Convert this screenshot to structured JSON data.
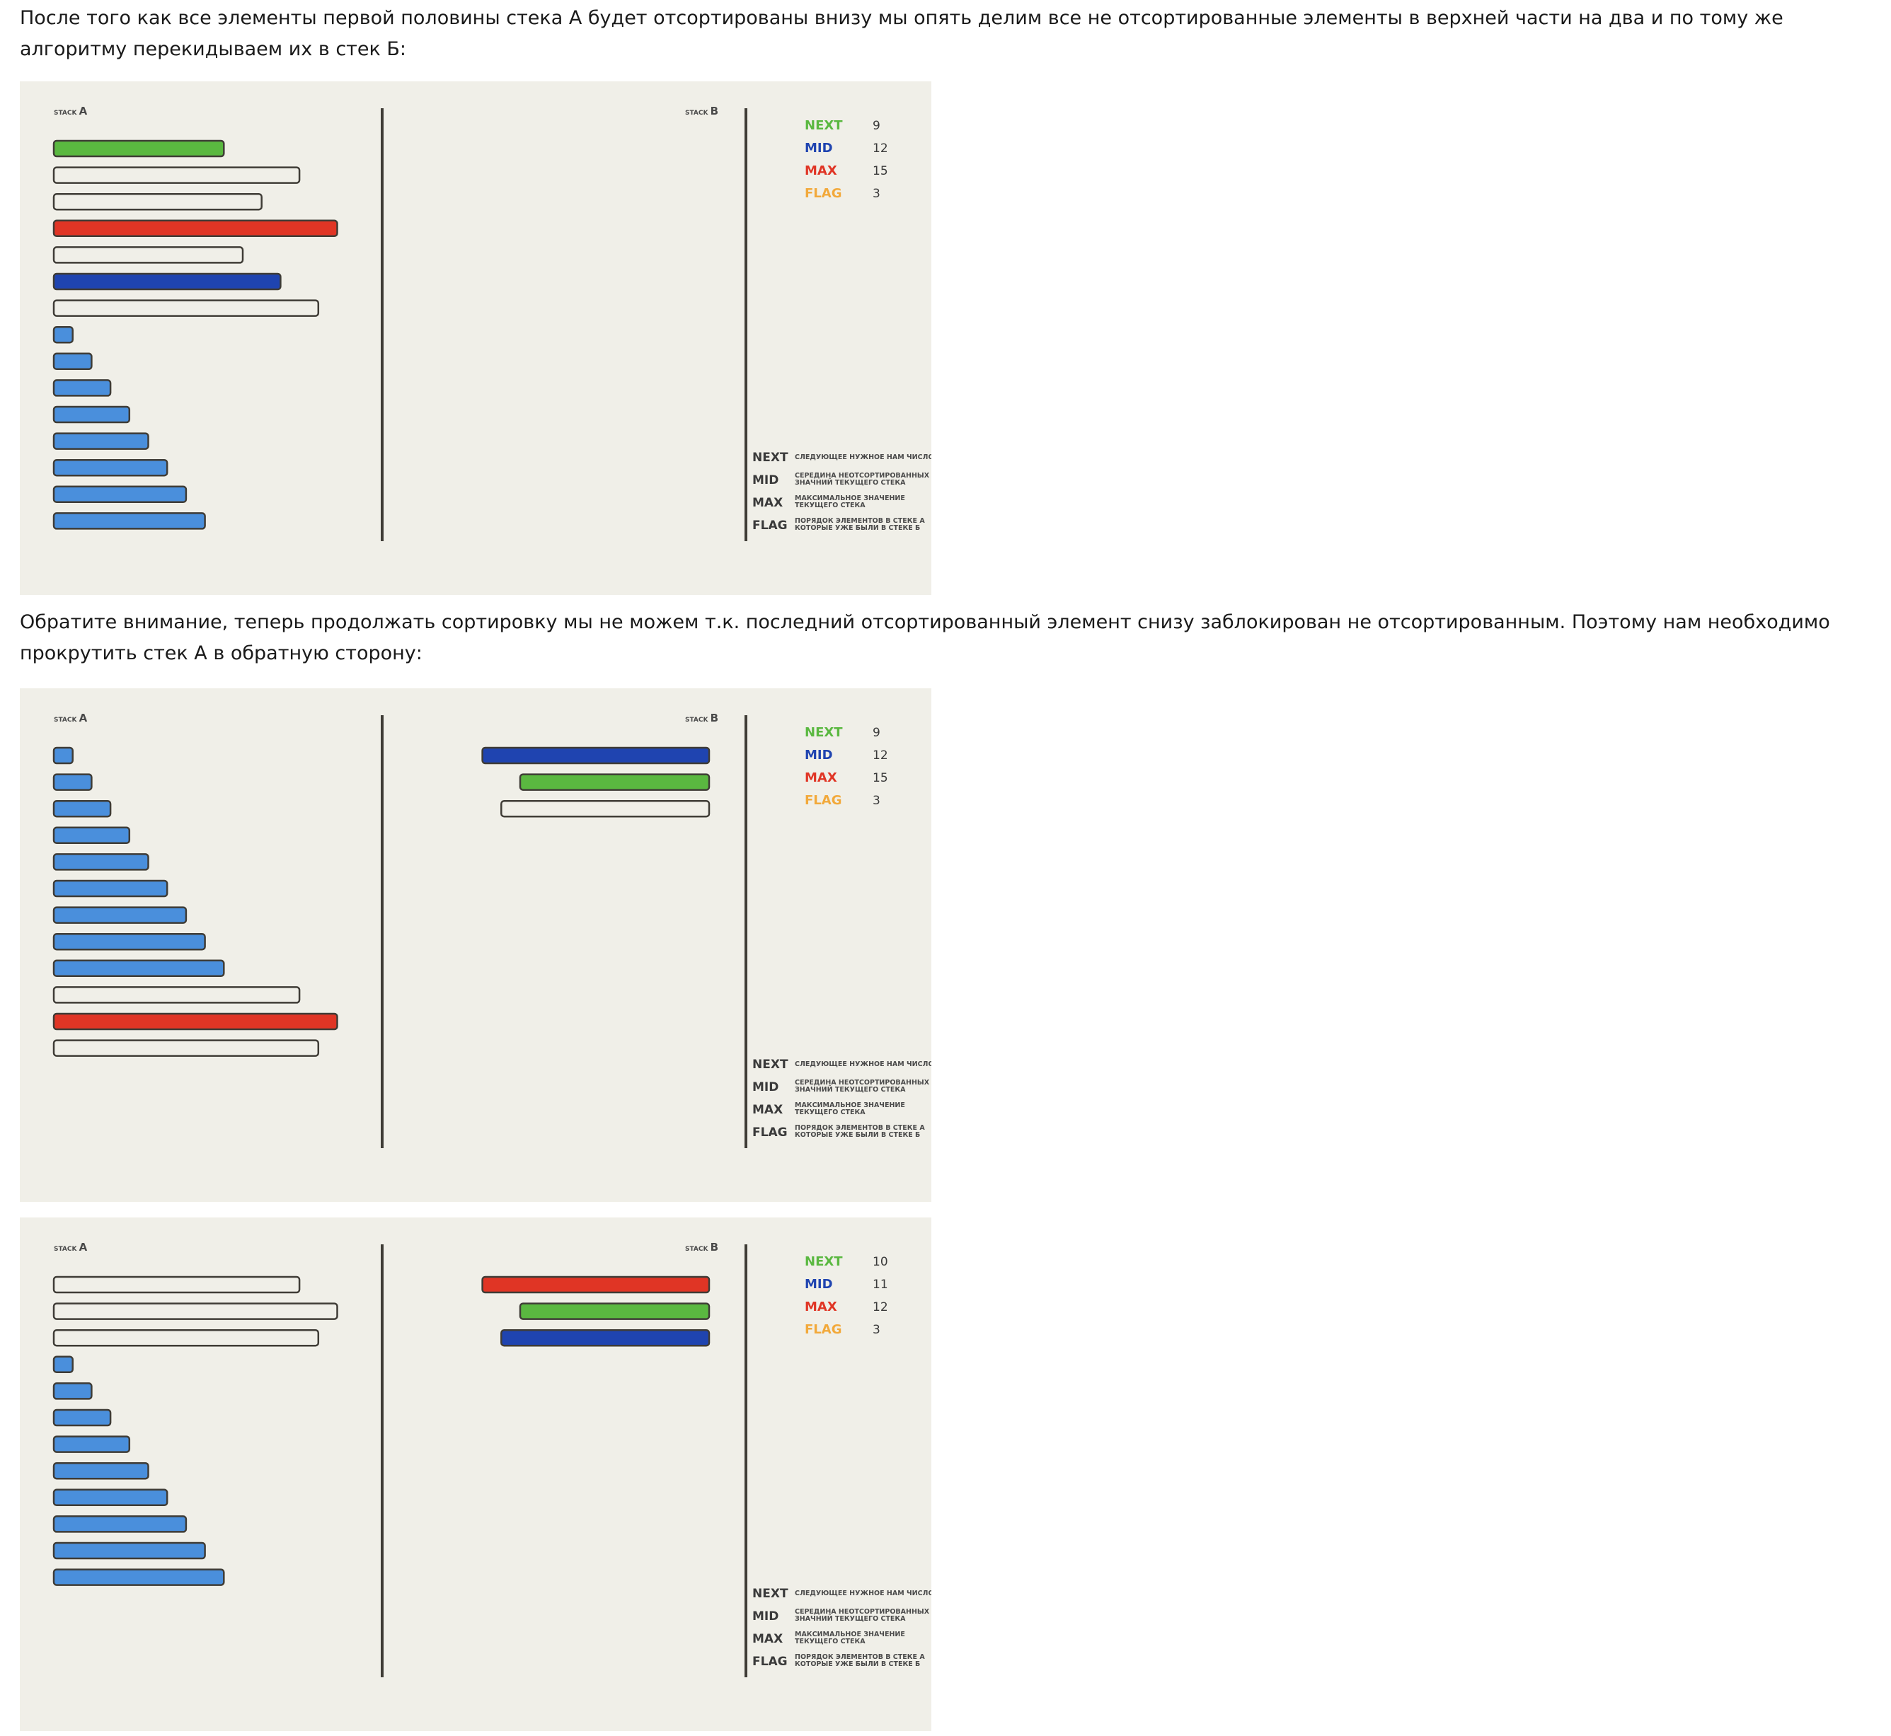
{
  "paragraphs": [
    "После того как все элементы первой половины стека А будет отсортированы внизу мы опять делим все не отсортированные элементы в верхней части на два и по тому же алгоритму перекидываем их в стек Б:",
    "Обратите внимание, теперь продолжать сортировку мы не можем т.к. последний отсортированный элемент снизу заблокирован не отсортированным. Поэтому нам необходимо прокрутить стек А в обратную сторону:"
  ],
  "labels": {
    "stack_word": "STACK",
    "stack_a": "A",
    "stack_b": "B"
  },
  "legend": [
    {
      "key": "NEXT",
      "desc": [
        "СЛЕДУЮЩЕЕ НУЖНОЕ НАМ ЧИСЛО"
      ]
    },
    {
      "key": "MID",
      "desc": [
        "СЕРЕДИНА НЕОТСОРТИРОВАННЫХ",
        "ЗНАЧНИЙ ТЕКУЩЕГО СТЕКА"
      ]
    },
    {
      "key": "MAX",
      "desc": [
        "МАКСИМАЛЬНОЕ ЗНАЧЕНИЕ",
        "ТЕКУЩЕГО СТЕКА"
      ]
    },
    {
      "key": "FLAG",
      "desc": [
        "ПОРЯДОК ЭЛЕМЕНТОВ В СТЕКЕ А",
        "КОТОРЫЕ УЖЕ БЫЛИ В СТЕКЕ Б"
      ]
    }
  ],
  "colors": {
    "background": "#f0efe8",
    "next": "#5ab840",
    "mid": "#1f44b0",
    "max": "#e03525",
    "flag": "#f2a93b",
    "sorted": "#4a8fdc",
    "unsorted": "#f0efe8",
    "outline": "#3f3c36"
  },
  "panels": [
    {
      "vars": [
        {
          "name": "NEXT",
          "value": "9",
          "color": "#5ab840"
        },
        {
          "name": "MID",
          "value": "12",
          "color": "#1f44b0"
        },
        {
          "name": "MAX",
          "value": "15",
          "color": "#e03525"
        },
        {
          "name": "FLAG",
          "value": "3",
          "color": "#f2a93b"
        }
      ],
      "stack_a": [
        {
          "value": 9,
          "color": "#5ab840"
        },
        {
          "value": 13,
          "color": "#f0efe8"
        },
        {
          "value": 11,
          "color": "#f0efe8"
        },
        {
          "value": 15,
          "color": "#e03525"
        },
        {
          "value": 10,
          "color": "#f0efe8"
        },
        {
          "value": 12,
          "color": "#1f44b0"
        },
        {
          "value": 14,
          "color": "#f0efe8"
        },
        {
          "value": 1,
          "color": "#4a8fdc"
        },
        {
          "value": 2,
          "color": "#4a8fdc"
        },
        {
          "value": 3,
          "color": "#4a8fdc"
        },
        {
          "value": 4,
          "color": "#4a8fdc"
        },
        {
          "value": 5,
          "color": "#4a8fdc"
        },
        {
          "value": 6,
          "color": "#4a8fdc"
        },
        {
          "value": 7,
          "color": "#4a8fdc"
        },
        {
          "value": 8,
          "color": "#4a8fdc"
        }
      ],
      "stack_b": []
    },
    {
      "vars": [
        {
          "name": "NEXT",
          "value": "9",
          "color": "#5ab840"
        },
        {
          "name": "MID",
          "value": "12",
          "color": "#1f44b0"
        },
        {
          "name": "MAX",
          "value": "15",
          "color": "#e03525"
        },
        {
          "name": "FLAG",
          "value": "3",
          "color": "#f2a93b"
        }
      ],
      "stack_a": [
        {
          "value": 1,
          "color": "#4a8fdc"
        },
        {
          "value": 2,
          "color": "#4a8fdc"
        },
        {
          "value": 3,
          "color": "#4a8fdc"
        },
        {
          "value": 4,
          "color": "#4a8fdc"
        },
        {
          "value": 5,
          "color": "#4a8fdc"
        },
        {
          "value": 6,
          "color": "#4a8fdc"
        },
        {
          "value": 7,
          "color": "#4a8fdc"
        },
        {
          "value": 8,
          "color": "#4a8fdc"
        },
        {
          "value": 9,
          "color": "#4a8fdc"
        },
        {
          "value": 13,
          "color": "#f0efe8"
        },
        {
          "value": 15,
          "color": "#e03525"
        },
        {
          "value": 14,
          "color": "#f0efe8"
        }
      ],
      "stack_b": [
        {
          "value": 12,
          "color": "#1f44b0"
        },
        {
          "value": 10,
          "color": "#5ab840"
        },
        {
          "value": 11,
          "color": "#f0efe8"
        }
      ]
    },
    {
      "vars": [
        {
          "name": "NEXT",
          "value": "10",
          "color": "#5ab840"
        },
        {
          "name": "MID",
          "value": "11",
          "color": "#1f44b0"
        },
        {
          "name": "MAX",
          "value": "12",
          "color": "#e03525"
        },
        {
          "name": "FLAG",
          "value": "3",
          "color": "#f2a93b"
        }
      ],
      "stack_a": [
        {
          "value": 13,
          "color": "#f0efe8"
        },
        {
          "value": 15,
          "color": "#f0efe8"
        },
        {
          "value": 14,
          "color": "#f0efe8"
        },
        {
          "value": 1,
          "color": "#4a8fdc"
        },
        {
          "value": 2,
          "color": "#4a8fdc"
        },
        {
          "value": 3,
          "color": "#4a8fdc"
        },
        {
          "value": 4,
          "color": "#4a8fdc"
        },
        {
          "value": 5,
          "color": "#4a8fdc"
        },
        {
          "value": 6,
          "color": "#4a8fdc"
        },
        {
          "value": 7,
          "color": "#4a8fdc"
        },
        {
          "value": 8,
          "color": "#4a8fdc"
        },
        {
          "value": 9,
          "color": "#4a8fdc"
        }
      ],
      "stack_b": [
        {
          "value": 12,
          "color": "#e03525"
        },
        {
          "value": 10,
          "color": "#5ab840"
        },
        {
          "value": 11,
          "color": "#1f44b0"
        }
      ]
    }
  ]
}
